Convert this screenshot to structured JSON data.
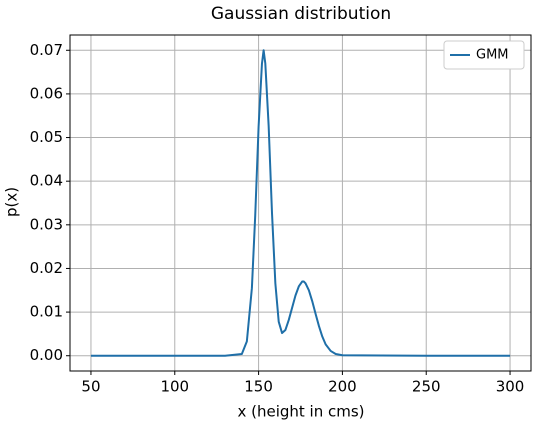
{
  "chart_data": {
    "type": "line",
    "title": "Gaussian distribution",
    "x_label": "x (height in cms)",
    "y_label": "p(x)",
    "x": [
      50,
      100,
      130,
      140,
      143,
      146,
      148,
      150,
      152,
      153,
      154,
      156,
      158,
      160,
      162,
      164,
      166,
      168,
      170,
      172,
      174,
      176,
      177,
      178,
      180,
      182,
      184,
      186,
      188,
      190,
      193,
      196,
      200,
      250,
      300
    ],
    "series": [
      {
        "name": "GMM",
        "color": "#1f6fa8",
        "values": [
          0,
          0,
          0,
          0.0004,
          0.0033,
          0.0155,
          0.0322,
          0.0525,
          0.0669,
          0.07,
          0.067,
          0.0527,
          0.0327,
          0.0166,
          0.0078,
          0.0052,
          0.0059,
          0.0082,
          0.011,
          0.0138,
          0.0159,
          0.017,
          0.017,
          0.0166,
          0.015,
          0.0125,
          0.0096,
          0.0068,
          0.0044,
          0.0026,
          0.0011,
          0.0004,
          0.0001,
          0,
          0
        ]
      }
    ],
    "xlim": [
      37.5,
      312.5
    ],
    "xticks": [
      50,
      100,
      150,
      200,
      250,
      300
    ],
    "ylim": [
      -0.0035,
      0.0735
    ],
    "yticks": [
      {
        "value": 0,
        "label": "0.00"
      },
      {
        "value": 0.01,
        "label": "0.01"
      },
      {
        "value": 0.02,
        "label": "0.02"
      },
      {
        "value": 0.03,
        "label": "0.03"
      },
      {
        "value": 0.04,
        "label": "0.04"
      },
      {
        "value": 0.05,
        "label": "0.05"
      },
      {
        "value": 0.06,
        "label": "0.06"
      },
      {
        "value": 0.07,
        "label": "0.07"
      }
    ],
    "grid": true,
    "legend_position": "upper right"
  }
}
